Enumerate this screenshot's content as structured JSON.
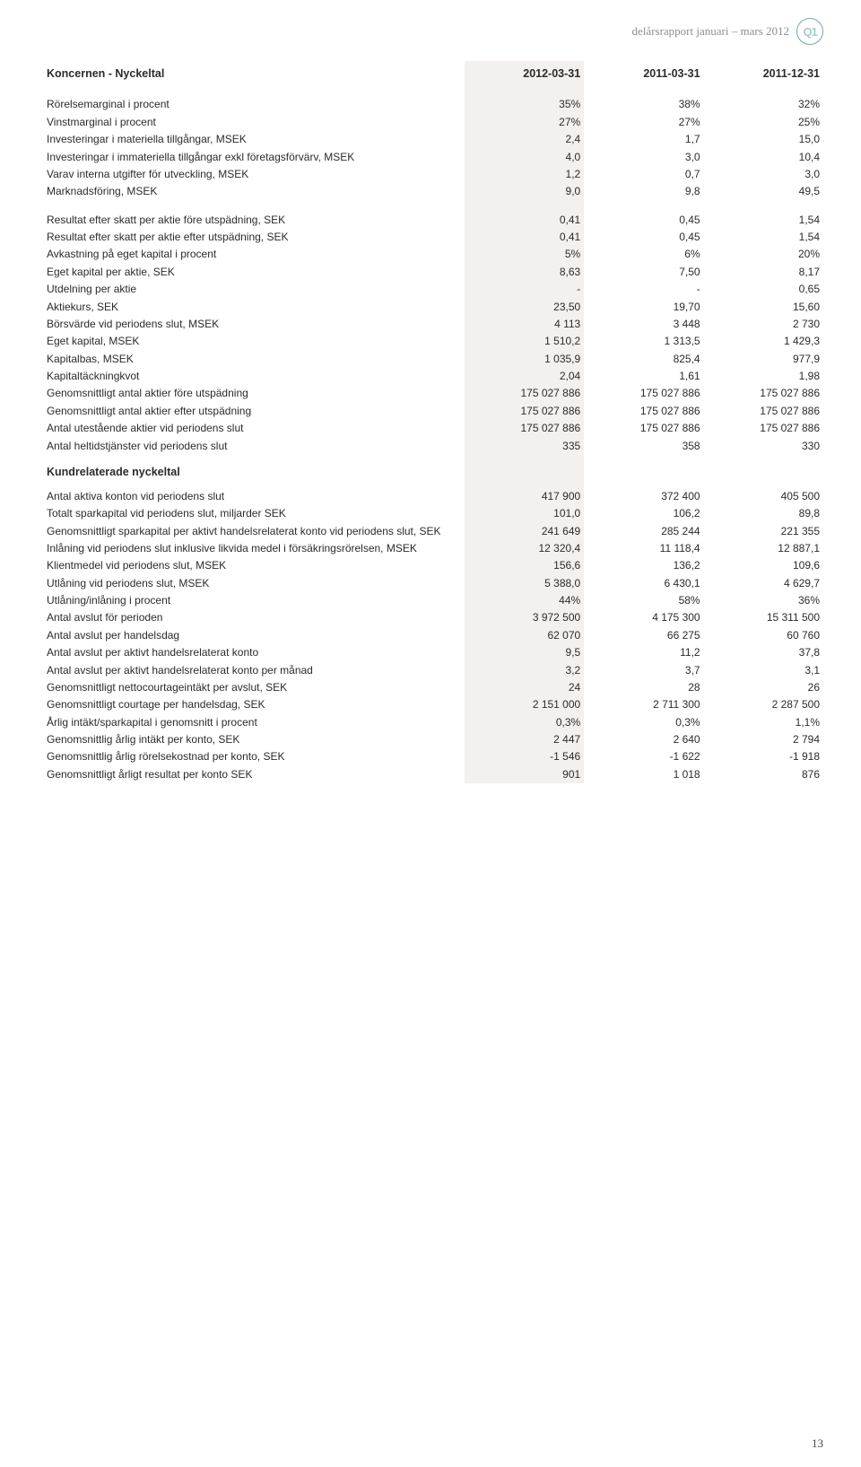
{
  "header": {
    "subtitle": "delårsrapport januari – mars 2012",
    "badge": "Q1"
  },
  "table": {
    "title": "Koncernen - Nyckeltal",
    "columns": [
      "2012-03-31",
      "2011-03-31",
      "2011-12-31"
    ],
    "group1": [
      {
        "label": "Rörelsemarginal i procent",
        "v": [
          "35%",
          "38%",
          "32%"
        ]
      },
      {
        "label": "Vinstmarginal i procent",
        "v": [
          "27%",
          "27%",
          "25%"
        ]
      },
      {
        "label": "Investeringar i materiella tillgångar, MSEK",
        "v": [
          "2,4",
          "1,7",
          "15,0"
        ]
      },
      {
        "label": "Investeringar i immateriella tillgångar exkl företagsförvärv, MSEK",
        "v": [
          "4,0",
          "3,0",
          "10,4"
        ]
      },
      {
        "label": "Varav interna utgifter för utveckling, MSEK",
        "v": [
          "1,2",
          "0,7",
          "3,0"
        ]
      },
      {
        "label": "Marknadsföring, MSEK",
        "v": [
          "9,0",
          "9,8",
          "49,5"
        ]
      }
    ],
    "group2": [
      {
        "label": "Resultat efter skatt per aktie före utspädning, SEK",
        "v": [
          "0,41",
          "0,45",
          "1,54"
        ]
      },
      {
        "label": "Resultat efter skatt per aktie efter utspädning, SEK",
        "v": [
          "0,41",
          "0,45",
          "1,54"
        ]
      },
      {
        "label": "Avkastning på eget kapital i procent",
        "v": [
          "5%",
          "6%",
          "20%"
        ]
      },
      {
        "label": "Eget kapital per aktie, SEK",
        "v": [
          "8,63",
          "7,50",
          "8,17"
        ]
      },
      {
        "label": "Utdelning per aktie",
        "v": [
          "-",
          "-",
          "0,65"
        ]
      },
      {
        "label": "Aktiekurs, SEK",
        "v": [
          "23,50",
          "19,70",
          "15,60"
        ]
      },
      {
        "label": "Börsvärde vid periodens slut, MSEK",
        "v": [
          "4 113",
          "3 448",
          "2 730"
        ]
      },
      {
        "label": "Eget kapital, MSEK",
        "v": [
          "1 510,2",
          "1 313,5",
          "1 429,3"
        ]
      },
      {
        "label": "Kapitalbas, MSEK",
        "v": [
          "1 035,9",
          "825,4",
          "977,9"
        ]
      },
      {
        "label": "Kapitaltäckningkvot",
        "v": [
          "2,04",
          "1,61",
          "1,98"
        ]
      },
      {
        "label": "Genomsnittligt antal aktier före utspädning",
        "v": [
          "175 027 886",
          "175 027 886",
          "175 027 886"
        ]
      },
      {
        "label": "Genomsnittligt antal aktier efter utspädning",
        "v": [
          "175 027 886",
          "175 027 886",
          "175 027 886"
        ]
      },
      {
        "label": "Antal utestående aktier vid periodens slut",
        "v": [
          "175 027 886",
          "175 027 886",
          "175 027 886"
        ]
      },
      {
        "label": "Antal heltidstjänster vid periodens slut",
        "v": [
          "335",
          "358",
          "330"
        ]
      }
    ],
    "section2_title": "Kundrelaterade nyckeltal",
    "group3": [
      {
        "label": "Antal aktiva konton vid periodens slut",
        "v": [
          "417 900",
          "372 400",
          "405 500"
        ]
      },
      {
        "label": "Totalt sparkapital vid periodens slut, miljarder SEK",
        "v": [
          "101,0",
          "106,2",
          "89,8"
        ]
      },
      {
        "label": "Genomsnittligt sparkapital per aktivt handelsrelaterat konto vid periodens slut, SEK",
        "v": [
          "241 649",
          "285 244",
          "221 355"
        ]
      },
      {
        "label": "Inlåning vid periodens slut inklusive likvida medel i försäkringsrörelsen, MSEK",
        "v": [
          "12 320,4",
          "11 118,4",
          "12 887,1"
        ]
      },
      {
        "label": "Klientmedel vid periodens slut, MSEK",
        "v": [
          "156,6",
          "136,2",
          "109,6"
        ]
      },
      {
        "label": "Utlåning vid periodens slut, MSEK",
        "v": [
          "5 388,0",
          "6 430,1",
          "4 629,7"
        ]
      },
      {
        "label": "Utlåning/inlåning i procent",
        "v": [
          "44%",
          "58%",
          "36%"
        ]
      },
      {
        "label": "Antal avslut för perioden",
        "v": [
          "3 972 500",
          "4 175 300",
          "15 311 500"
        ]
      },
      {
        "label": "Antal avslut per handelsdag",
        "v": [
          "62 070",
          "66 275",
          "60 760"
        ]
      },
      {
        "label": "Antal avslut per aktivt handelsrelaterat konto",
        "v": [
          "9,5",
          "11,2",
          "37,8"
        ]
      },
      {
        "label": "Antal avslut per aktivt handelsrelaterat konto per månad",
        "v": [
          "3,2",
          "3,7",
          "3,1"
        ]
      },
      {
        "label": "Genomsnittligt nettocourtageintäkt per avslut, SEK",
        "v": [
          "24",
          "28",
          "26"
        ]
      },
      {
        "label": "Genomsnittligt courtage per handelsdag, SEK",
        "v": [
          "2 151 000",
          "2 711 300",
          "2 287 500"
        ]
      },
      {
        "label": "Årlig intäkt/sparkapital i genomsnitt i procent",
        "v": [
          "0,3%",
          "0,3%",
          "1,1%"
        ]
      },
      {
        "label": "Genomsnittlig årlig intäkt per konto, SEK",
        "v": [
          "2 447",
          "2 640",
          "2 794"
        ]
      },
      {
        "label": "Genomsnittlig årlig rörelsekostnad per konto, SEK",
        "v": [
          "-1 546",
          "-1 622",
          "-1 918"
        ]
      },
      {
        "label": "Genomsnittligt årligt resultat per konto SEK",
        "v": [
          "901",
          "1 018",
          "876"
        ]
      }
    ]
  },
  "page_number": "13"
}
